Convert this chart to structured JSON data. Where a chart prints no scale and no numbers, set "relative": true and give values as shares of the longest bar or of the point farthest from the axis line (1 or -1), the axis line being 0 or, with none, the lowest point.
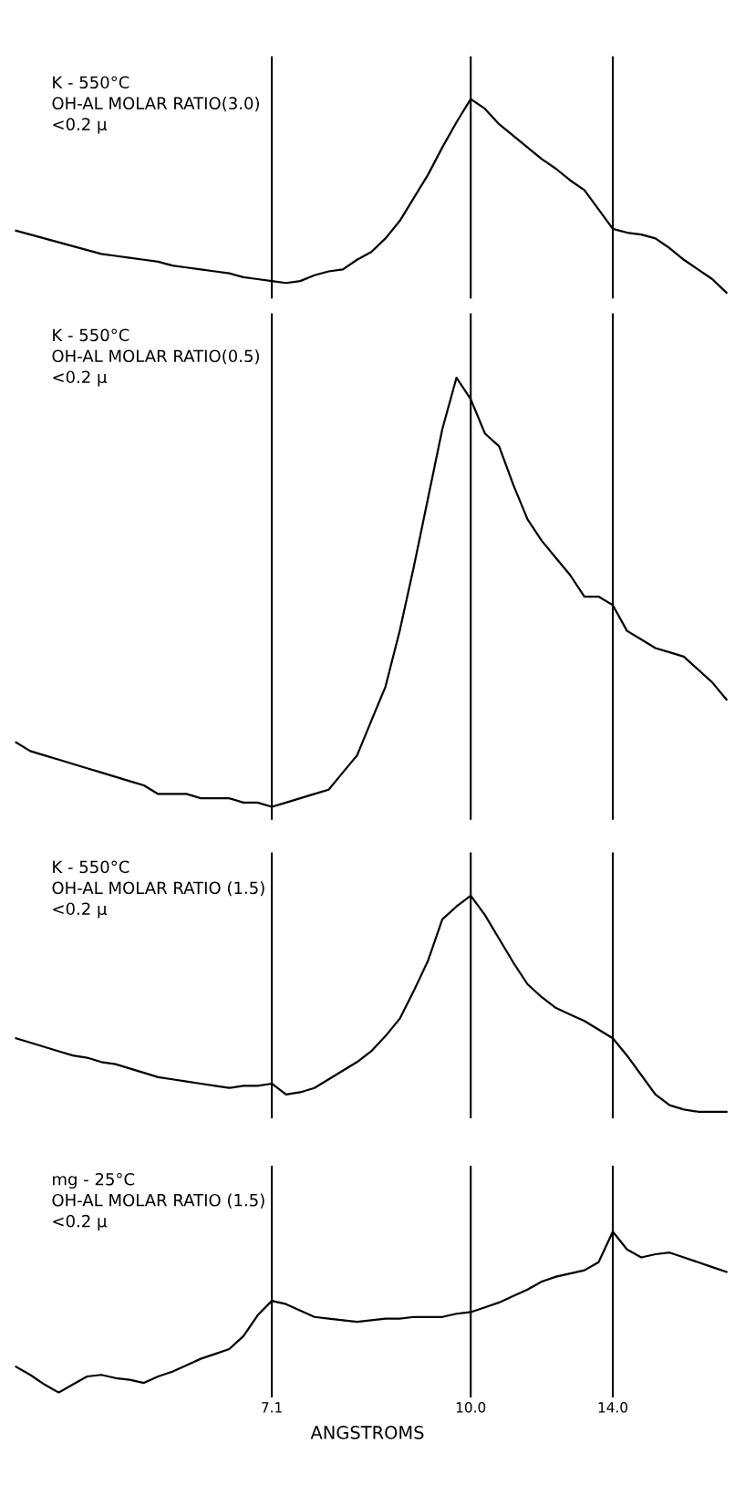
{
  "chart_data": [
    {
      "type": "line",
      "title": "K - 550°C\nOH-AL MOLAR RATIO(3.0)\n<0.2 μ",
      "relative": true,
      "tick_labels": false,
      "categories": [
        null,
        null,
        null,
        null,
        null,
        null,
        null,
        null,
        null,
        null,
        null,
        null,
        null,
        null,
        null,
        null,
        null,
        null,
        "7.1",
        null,
        null,
        null,
        null,
        null,
        null,
        null,
        null,
        null,
        null,
        null,
        null,
        null,
        "10.0",
        null,
        null,
        null,
        null,
        null,
        null,
        null,
        null,
        null,
        "14.0",
        null,
        null,
        null,
        null,
        null,
        null,
        null,
        null
      ],
      "series": [
        {
          "color": "#000000",
          "values": [
            0.32,
            0.3,
            0.28,
            0.26,
            0.24,
            0.22,
            0.2,
            0.19,
            0.18,
            0.17,
            0.16,
            0.14,
            0.13,
            0.12,
            0.11,
            0.1,
            0.08,
            0.07,
            0.06,
            0.05,
            0.06,
            0.09,
            0.11,
            0.12,
            0.17,
            0.21,
            0.28,
            0.37,
            0.49,
            0.61,
            0.75,
            0.88,
            1,
            0.95,
            0.87,
            0.81,
            0.75,
            0.69,
            0.64,
            0.58,
            0.53,
            0.43,
            0.33,
            0.31,
            0.3,
            0.28,
            0.23,
            0.17,
            0.12,
            0.07,
            0
          ]
        }
      ],
      "ref_lines": [
        {
          "axis": "x",
          "value": "7.1",
          "color": "#000000"
        },
        {
          "axis": "x",
          "value": "10.0",
          "color": "#000000"
        },
        {
          "axis": "x",
          "value": "14.0",
          "color": "#000000"
        }
      ]
    },
    {
      "type": "line",
      "title": "K - 550°C\nOH-AL MOLAR RATIO(0.5)\n<0.2 μ",
      "relative": true,
      "tick_labels": false,
      "categories": [
        null,
        null,
        null,
        null,
        null,
        null,
        null,
        null,
        null,
        null,
        null,
        null,
        null,
        null,
        null,
        null,
        null,
        null,
        "7.1",
        null,
        null,
        null,
        null,
        null,
        null,
        null,
        null,
        null,
        null,
        null,
        null,
        null,
        "10.0",
        null,
        null,
        null,
        null,
        null,
        null,
        null,
        null,
        null,
        "14.0",
        null,
        null,
        null,
        null,
        null,
        null,
        null,
        null
      ],
      "series": [
        {
          "color": "#000000",
          "values": [
            0.15,
            0.13,
            0.12,
            0.11,
            0.1,
            0.09,
            0.08,
            0.07,
            0.06,
            0.05,
            0.03,
            0.03,
            0.03,
            0.02,
            0.02,
            0.02,
            0.01,
            0.01,
            0,
            0.01,
            0.02,
            0.03,
            0.04,
            0.08,
            0.12,
            0.2,
            0.28,
            0.41,
            0.56,
            0.72,
            0.88,
            1,
            0.95,
            0.87,
            0.84,
            0.75,
            0.67,
            0.62,
            0.58,
            0.54,
            0.49,
            0.49,
            0.47,
            0.41,
            0.39,
            0.37,
            0.36,
            0.35,
            0.32,
            0.29,
            0.25
          ]
        }
      ],
      "ref_lines": [
        {
          "axis": "x",
          "value": "7.1",
          "color": "#000000"
        },
        {
          "axis": "x",
          "value": "10.0",
          "color": "#000000"
        },
        {
          "axis": "x",
          "value": "14.0",
          "color": "#000000"
        }
      ]
    },
    {
      "type": "line",
      "title": "K - 550°C\nOH-AL MOLAR RATIO (1.5)\n<0.2 μ",
      "relative": true,
      "tick_labels": false,
      "categories": [
        null,
        null,
        null,
        null,
        null,
        null,
        null,
        null,
        null,
        null,
        null,
        null,
        null,
        null,
        null,
        null,
        null,
        null,
        "7.1",
        null,
        null,
        null,
        null,
        null,
        null,
        null,
        null,
        null,
        null,
        null,
        null,
        null,
        "10.0",
        null,
        null,
        null,
        null,
        null,
        null,
        null,
        null,
        null,
        "14.0",
        null,
        null,
        null,
        null,
        null,
        null,
        null,
        null
      ],
      "series": [
        {
          "color": "#000000",
          "values": [
            0.34,
            0.32,
            0.3,
            0.28,
            0.26,
            0.25,
            0.23,
            0.22,
            0.2,
            0.18,
            0.16,
            0.15,
            0.14,
            0.13,
            0.12,
            0.11,
            0.12,
            0.12,
            0.13,
            0.08,
            0.09,
            0.11,
            0.15,
            0.19,
            0.23,
            0.28,
            0.35,
            0.43,
            0.56,
            0.7,
            0.89,
            0.95,
            1,
            0.91,
            0.8,
            0.69,
            0.59,
            0.53,
            0.48,
            0.45,
            0.42,
            0.38,
            0.34,
            0.26,
            0.17,
            0.08,
            0.03,
            0.01,
            0,
            0,
            0
          ]
        }
      ],
      "ref_lines": [
        {
          "axis": "x",
          "value": "7.1",
          "color": "#000000"
        },
        {
          "axis": "x",
          "value": "10.0",
          "color": "#000000"
        },
        {
          "axis": "x",
          "value": "14.0",
          "color": "#000000"
        }
      ]
    },
    {
      "type": "line",
      "title": "mg - 25°C\nOH-AL MOLAR RATIO (1.5)\n<0.2 μ",
      "relative": true,
      "tick_labels": "x",
      "xlabel": "ANGSTROMS",
      "categories": [
        null,
        null,
        null,
        null,
        null,
        null,
        null,
        null,
        null,
        null,
        null,
        null,
        null,
        null,
        null,
        null,
        null,
        null,
        "7.1",
        null,
        null,
        null,
        null,
        null,
        null,
        null,
        null,
        null,
        null,
        null,
        null,
        null,
        "10.0",
        null,
        null,
        null,
        null,
        null,
        null,
        null,
        null,
        null,
        "14.0",
        null,
        null,
        null,
        null,
        null,
        null,
        null,
        null
      ],
      "series": [
        {
          "color": "#000000",
          "values": [
            0.16,
            0.11,
            0.05,
            0,
            0.05,
            0.1,
            0.11,
            0.09,
            0.08,
            0.06,
            0.1,
            0.13,
            0.17,
            0.21,
            0.24,
            0.27,
            0.35,
            0.48,
            0.57,
            0.55,
            0.51,
            0.47,
            0.46,
            0.45,
            0.44,
            0.45,
            0.46,
            0.46,
            0.47,
            0.47,
            0.47,
            0.49,
            0.5,
            0.53,
            0.56,
            0.6,
            0.64,
            0.69,
            0.72,
            0.74,
            0.76,
            0.81,
            1,
            0.89,
            0.84,
            0.86,
            0.87,
            0.84,
            0.81,
            0.78,
            0.75
          ]
        }
      ],
      "ref_lines": [
        {
          "axis": "x",
          "value": "7.1",
          "color": "#000000"
        },
        {
          "axis": "x",
          "value": "10.0",
          "color": "#000000"
        },
        {
          "axis": "x",
          "value": "14.0",
          "color": "#000000"
        }
      ]
    }
  ]
}
